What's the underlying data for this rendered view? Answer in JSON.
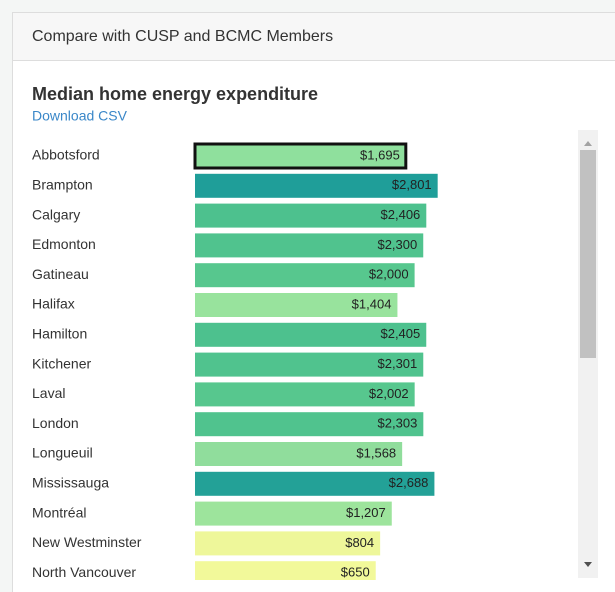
{
  "panel_title": "Compare with CUSP and BCMC Members",
  "download_link": "Download CSV",
  "chart_data": {
    "type": "bar",
    "orientation": "horizontal",
    "title": "Median home energy expenditure",
    "categories": [
      "Abbotsford",
      "Brampton",
      "Calgary",
      "Edmonton",
      "Gatineau",
      "Halifax",
      "Hamilton",
      "Kitchener",
      "Laval",
      "London",
      "Longueuil",
      "Mississauga",
      "Montréal",
      "New Westminster",
      "North Vancouver"
    ],
    "values": [
      1695,
      2801,
      2406,
      2300,
      2000,
      1404,
      2405,
      2301,
      2002,
      2303,
      1568,
      2688,
      1207,
      804,
      650
    ],
    "value_labels": [
      "$1,695",
      "$2,801",
      "$2,406",
      "$2,300",
      "$2,000",
      "$1,404",
      "$2,405",
      "$2,301",
      "$2,002",
      "$2,303",
      "$1,568",
      "$2,688",
      "$1,207",
      "$804",
      "$650"
    ],
    "colors": [
      "#8fe09d",
      "#1f9e99",
      "#4dc18e",
      "#50c38e",
      "#57c78e",
      "#98e39d",
      "#4dc18e",
      "#50c38e",
      "#57c78e",
      "#50c38e",
      "#90dd9c",
      "#23a197",
      "#9de49c",
      "#eef79a",
      "#f2f99a"
    ],
    "highlight_index": 0
  }
}
